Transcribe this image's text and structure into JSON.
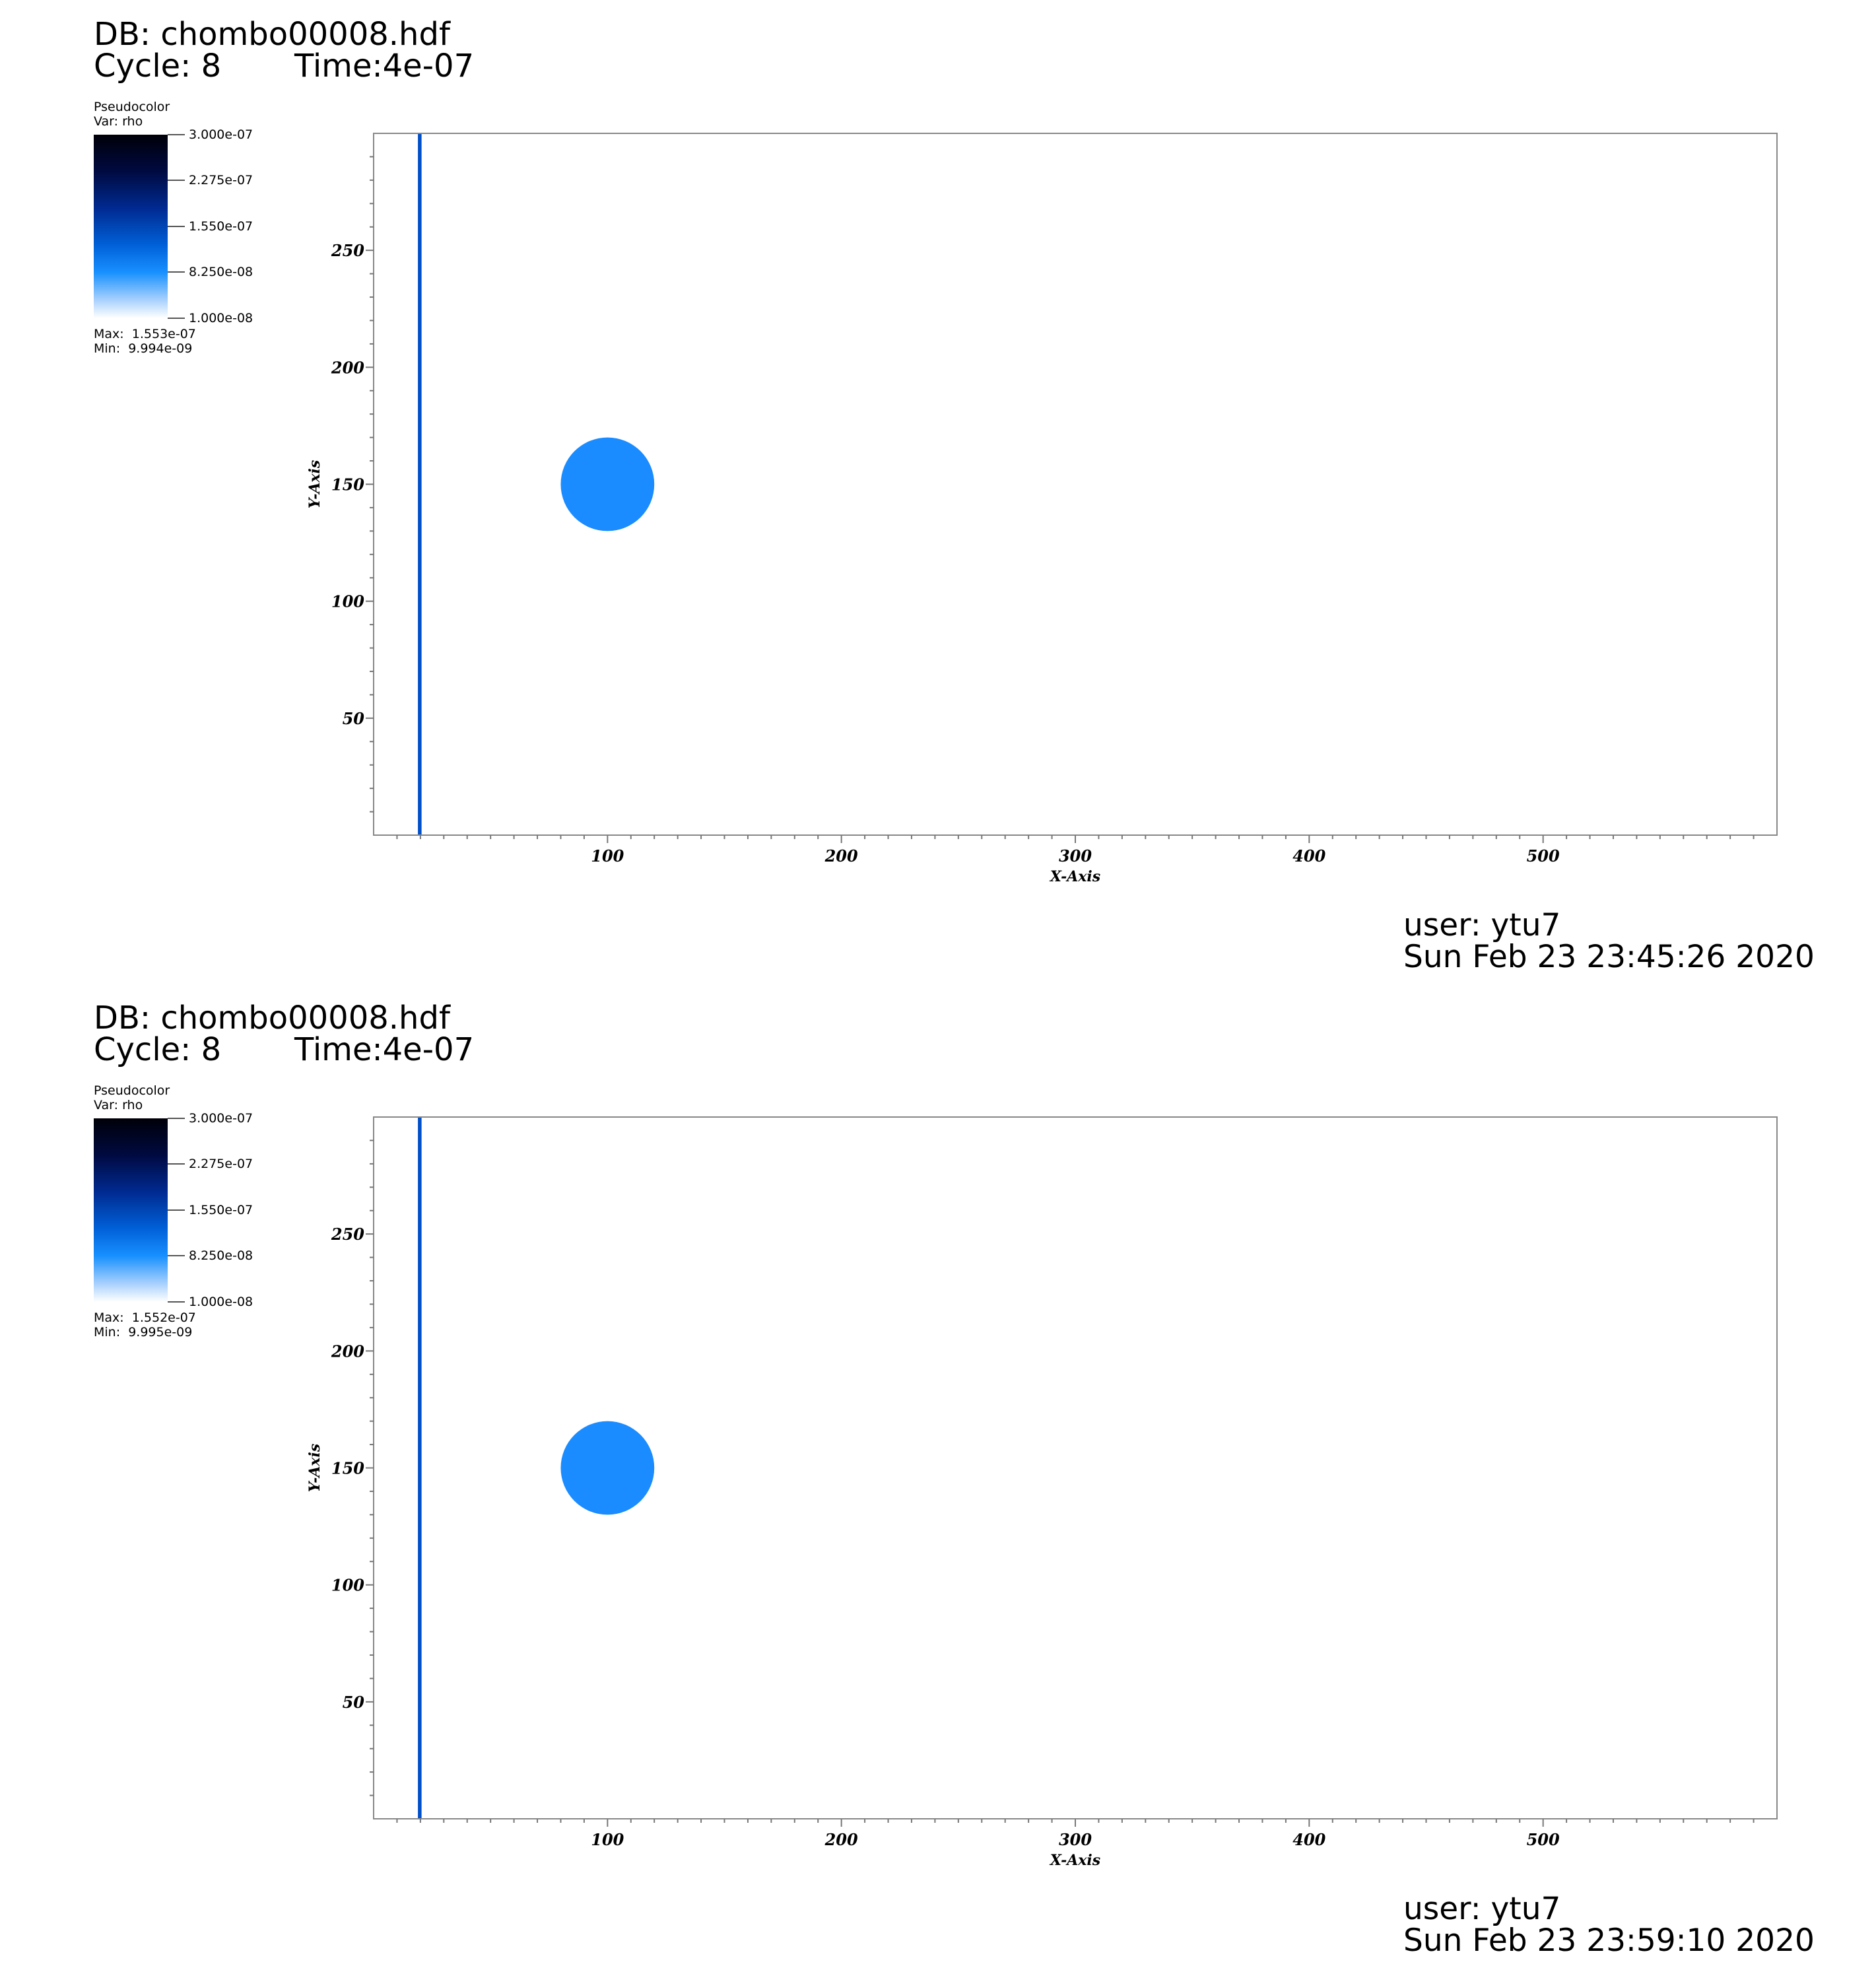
{
  "panels": [
    {
      "db": "DB: chombo00008.hdf",
      "cycle": "Cycle: 8",
      "time": "Time:4e-07",
      "legend": {
        "title": "Pseudocolor",
        "var": "Var: rho",
        "ticks": [
          "3.000e-07",
          "2.275e-07",
          "1.550e-07",
          "8.250e-08",
          "1.000e-08"
        ],
        "max": "Max:  1.553e-07",
        "min": "Min:  9.994e-09"
      },
      "user": "user: ytu7",
      "date": "Sun Feb 23 23:45:26 2020"
    },
    {
      "db": "DB: chombo00008.hdf",
      "cycle": "Cycle: 8",
      "time": "Time:4e-07",
      "legend": {
        "title": "Pseudocolor",
        "var": "Var: rho",
        "ticks": [
          "3.000e-07",
          "2.275e-07",
          "1.550e-07",
          "8.250e-08",
          "1.000e-08"
        ],
        "max": "Max:  1.552e-07",
        "min": "Min:  9.995e-09"
      },
      "user": "user: ytu7",
      "date": "Sun Feb 23 23:59:10 2020"
    }
  ],
  "chart_data": [
    {
      "type": "heatmap",
      "xlabel": "X-Axis",
      "ylabel": "Y-Axis",
      "xlim": [
        0,
        600
      ],
      "ylim": [
        0,
        300
      ],
      "xticks": [
        100,
        200,
        300,
        400,
        500
      ],
      "yticks": [
        50,
        100,
        150,
        200,
        250
      ],
      "features": [
        {
          "kind": "vertical-band",
          "x": 20,
          "color": "#0050c8"
        },
        {
          "kind": "disk",
          "cx": 100,
          "cy": 150,
          "r": 20,
          "color": "#1a8cff"
        }
      ]
    },
    {
      "type": "heatmap",
      "xlabel": "X-Axis",
      "ylabel": "Y-Axis",
      "xlim": [
        0,
        600
      ],
      "ylim": [
        0,
        300
      ],
      "xticks": [
        100,
        200,
        300,
        400,
        500
      ],
      "yticks": [
        50,
        100,
        150,
        200,
        250
      ],
      "features": [
        {
          "kind": "vertical-band",
          "x": 20,
          "color": "#0050c8"
        },
        {
          "kind": "disk",
          "cx": 100,
          "cy": 150,
          "r": 20,
          "color": "#1a8cff"
        }
      ]
    }
  ]
}
